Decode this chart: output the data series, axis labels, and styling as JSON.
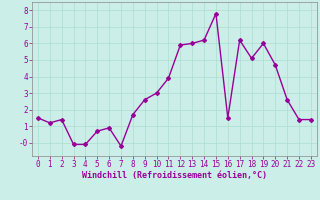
{
  "x": [
    0,
    1,
    2,
    3,
    4,
    5,
    6,
    7,
    8,
    9,
    10,
    11,
    12,
    13,
    14,
    15,
    16,
    17,
    18,
    19,
    20,
    21,
    22,
    23
  ],
  "y": [
    1.5,
    1.2,
    1.4,
    -0.1,
    -0.1,
    0.7,
    0.9,
    -0.2,
    1.7,
    2.6,
    3.0,
    3.9,
    5.9,
    6.0,
    6.2,
    7.8,
    1.5,
    6.2,
    5.1,
    6.0,
    4.7,
    2.6,
    1.4,
    1.4
  ],
  "line_color": "#990099",
  "marker": "D",
  "markersize": 2,
  "linewidth": 1.0,
  "xlabel": "Windchill (Refroidissement éolien,°C)",
  "xlabel_fontsize": 6,
  "ylim": [
    -0.8,
    8.5
  ],
  "xlim": [
    -0.5,
    23.5
  ],
  "yticks": [
    0,
    1,
    2,
    3,
    4,
    5,
    6,
    7,
    8
  ],
  "ytick_labels": [
    "-0",
    "1",
    "2",
    "3",
    "4",
    "5",
    "6",
    "7",
    "8"
  ],
  "xticks": [
    0,
    1,
    2,
    3,
    4,
    5,
    6,
    7,
    8,
    9,
    10,
    11,
    12,
    13,
    14,
    15,
    16,
    17,
    18,
    19,
    20,
    21,
    22,
    23
  ],
  "grid_color": "#aaddcc",
  "bg_color": "#cceee8",
  "tick_fontsize": 5.5,
  "spine_color": "#888888"
}
